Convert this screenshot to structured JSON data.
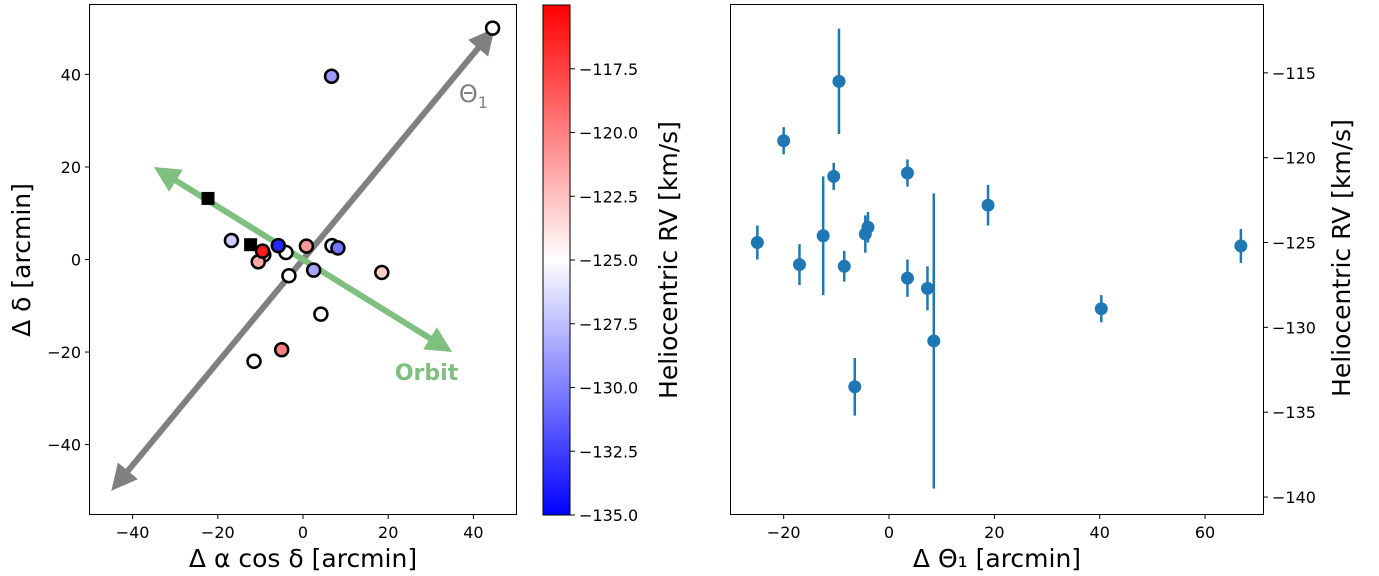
{
  "chart_data": [
    {
      "type": "scatter",
      "panel": "left",
      "xlabel": "Δ α cos δ [arcmin]",
      "ylabel": "Δ δ [arcmin]",
      "xlim": [
        -50,
        50
      ],
      "ylim": [
        -55,
        55
      ],
      "xticks": [
        -40,
        -20,
        0,
        20,
        40
      ],
      "yticks": [
        -40,
        -20,
        0,
        20,
        40
      ],
      "grid": false,
      "colorscale": {
        "min": -135.0,
        "max": -115.0,
        "colors": [
          "#0000ff",
          "#ffffff",
          "#ff0000"
        ]
      },
      "arrows": [
        {
          "name": "theta1",
          "from": [
            -45,
            -50
          ],
          "to": [
            45,
            50
          ],
          "color": "#808080",
          "label": "Θ",
          "label_sub": "1",
          "label_pos": [
            40,
            34
          ]
        },
        {
          "name": "orbit",
          "from": [
            -35,
            20
          ],
          "to": [
            35,
            -20
          ],
          "color": "#7fbf7f",
          "label": "Orbit",
          "label_pos": [
            29,
            -26
          ]
        }
      ],
      "points": [
        {
          "x": 6.7,
          "y": 39.6,
          "rv": -129.0
        },
        {
          "x": 44.5,
          "y": 50.0,
          "rv": null
        },
        {
          "x": -16.8,
          "y": 4.1,
          "rv": -127.0
        },
        {
          "x": -9.2,
          "y": 1.0,
          "rv": null
        },
        {
          "x": -4.0,
          "y": 1.5,
          "rv": null
        },
        {
          "x": -10.5,
          "y": -0.5,
          "rv": -121.5
        },
        {
          "x": -9.5,
          "y": 1.8,
          "rv": -116.0
        },
        {
          "x": -5.8,
          "y": 3.0,
          "rv": -133.5
        },
        {
          "x": 0.8,
          "y": 2.9,
          "rv": -121.0
        },
        {
          "x": 6.8,
          "y": 3.0,
          "rv": -126.0
        },
        {
          "x": 8.2,
          "y": 2.5,
          "rv": -130.5
        },
        {
          "x": 2.5,
          "y": -2.3,
          "rv": -128.5
        },
        {
          "x": -3.3,
          "y": -3.5,
          "rv": null
        },
        {
          "x": 18.5,
          "y": -2.8,
          "rv": -123.0
        },
        {
          "x": 4.2,
          "y": -11.8,
          "rv": null
        },
        {
          "x": -5.0,
          "y": -19.5,
          "rv": -120.0
        },
        {
          "x": -11.5,
          "y": -22.0,
          "rv": null
        }
      ],
      "squares": [
        {
          "x": -22.3,
          "y": 13.2
        },
        {
          "x": -12.3,
          "y": 3.2
        }
      ]
    },
    {
      "type": "colorbar",
      "label": "Heliocentric RV [km/s]",
      "range": [
        -135.0,
        -115.0
      ],
      "ticks": [
        -117.5,
        -120.0,
        -122.5,
        -125.0,
        -127.5,
        -130.0,
        -132.5,
        -135.0
      ],
      "tick_labels": [
        "−117.5",
        "−120.0",
        "−122.5",
        "−125.0",
        "−127.5",
        "−130.0",
        "−132.5",
        "−135.0"
      ],
      "colors": [
        "#ff0000",
        "#ffffff",
        "#0000ff"
      ]
    },
    {
      "type": "scatter",
      "panel": "right",
      "xlabel": "Δ Θ₁ [arcmin]",
      "ylabel": "Heliocentric RV [km/s]",
      "xlim": [
        -30,
        71
      ],
      "ylim": [
        -141,
        -111
      ],
      "xticks": [
        -20,
        0,
        20,
        40,
        60
      ],
      "yticks": [
        -115,
        -120,
        -125,
        -130,
        -135,
        -140
      ],
      "grid": false,
      "color": "#1f77b4",
      "points": [
        {
          "x": -25.0,
          "y": -125.0,
          "err": 1.0
        },
        {
          "x": -20.0,
          "y": -119.0,
          "err": 0.8
        },
        {
          "x": -17.0,
          "y": -126.3,
          "err": 1.2
        },
        {
          "x": -12.5,
          "y": -124.6,
          "err": 3.5
        },
        {
          "x": -10.5,
          "y": -121.1,
          "err": 0.8
        },
        {
          "x": -9.5,
          "y": -115.5,
          "err": 3.1
        },
        {
          "x": -8.5,
          "y": -126.4,
          "err": 0.9
        },
        {
          "x": -6.5,
          "y": -133.5,
          "err": 1.7
        },
        {
          "x": -4.5,
          "y": -124.5,
          "err": 1.1
        },
        {
          "x": -4.0,
          "y": -124.1,
          "err": 0.9
        },
        {
          "x": 3.5,
          "y": -120.9,
          "err": 0.8
        },
        {
          "x": 3.5,
          "y": -127.1,
          "err": 1.1
        },
        {
          "x": 7.3,
          "y": -127.7,
          "err": 1.3
        },
        {
          "x": 8.5,
          "y": -130.8,
          "err": 8.7
        },
        {
          "x": 18.8,
          "y": -122.8,
          "err": 1.2
        },
        {
          "x": 40.3,
          "y": -128.9,
          "err": 0.8
        },
        {
          "x": 66.8,
          "y": -125.2,
          "err": 1.0
        }
      ]
    }
  ]
}
